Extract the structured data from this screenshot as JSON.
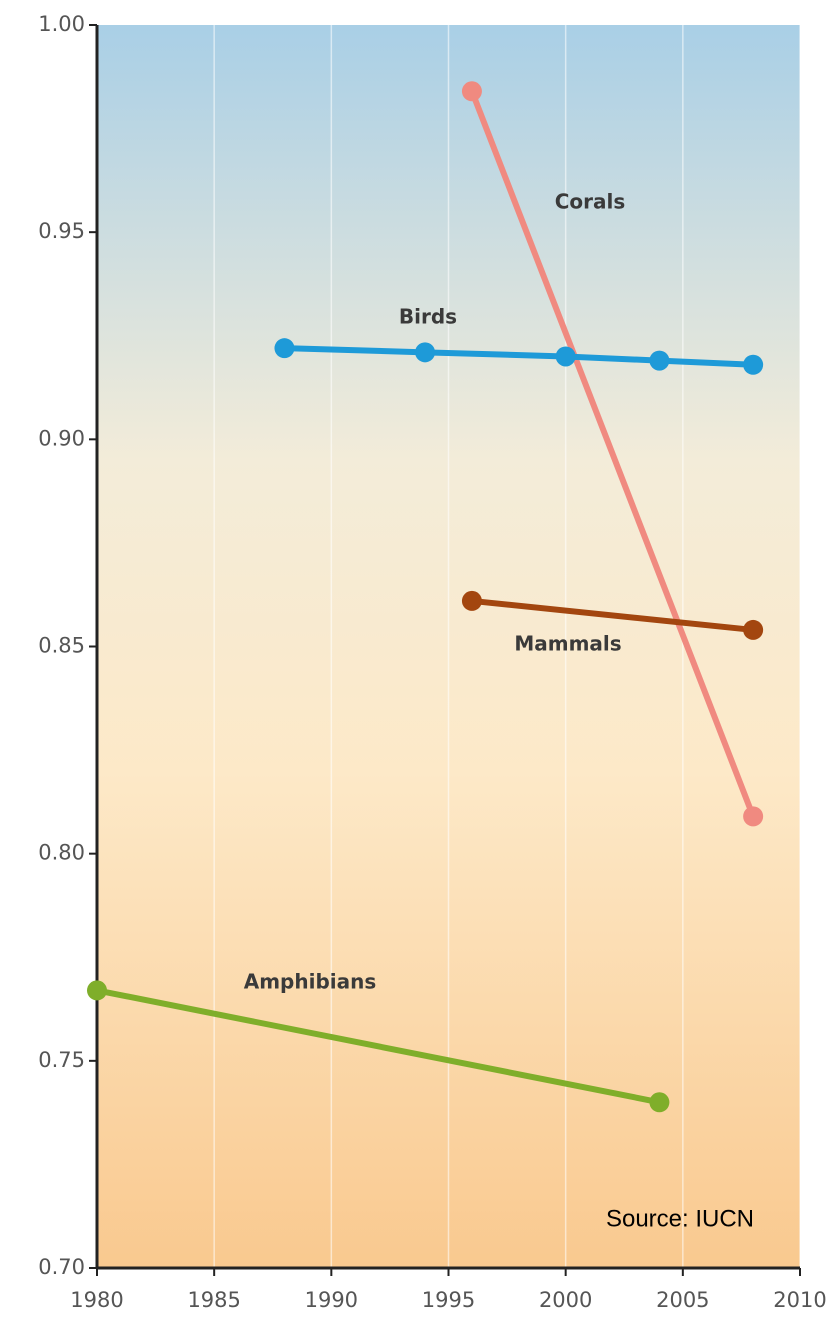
{
  "chart_data": {
    "type": "line",
    "source": "Source: IUCN",
    "xlim": [
      1980,
      2010
    ],
    "xticks": [
      1980,
      1985,
      1990,
      1995,
      2000,
      2005,
      2010
    ],
    "ylim": [
      0.7,
      1.0
    ],
    "yticks": [
      {
        "value": 0.7,
        "label": "0.70"
      },
      0.75,
      {
        "value": 0.8,
        "label": "0.80"
      },
      0.85,
      {
        "value": 0.9,
        "label": "0.90"
      },
      0.95,
      {
        "value": 1.0,
        "label": "1.00"
      }
    ],
    "grid": true,
    "series": [
      {
        "name": "Corals",
        "color": "#f08a80",
        "x": [
          1996,
          2008
        ],
        "values": [
          0.984,
          0.809
        ]
      },
      {
        "name": "Birds",
        "color": "#1e9ad8",
        "x": [
          1988,
          1994,
          2000,
          2004,
          2008
        ],
        "values": [
          0.922,
          0.921,
          0.92,
          0.919,
          0.918
        ]
      },
      {
        "name": "Mammals",
        "color": "#a3460f",
        "x": [
          1996,
          2008
        ],
        "values": [
          0.861,
          0.854
        ]
      },
      {
        "name": "Amphibians",
        "color": "#7fae2a",
        "x": [
          1980,
          2004
        ],
        "values": [
          0.767,
          0.74
        ]
      }
    ]
  }
}
